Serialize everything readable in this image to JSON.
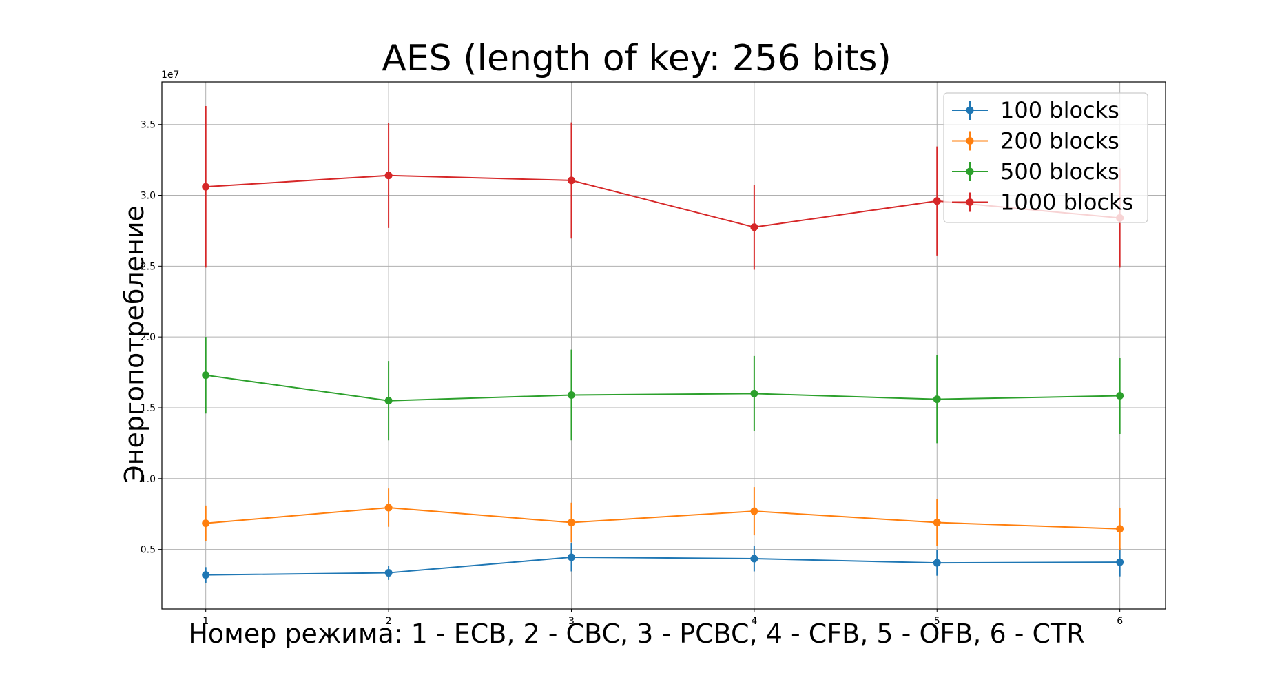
{
  "chart_data": {
    "type": "line",
    "title": "AES (length of key: 256 bits)",
    "xlabel": "Номер режима: 1 - ECB, 2 - CBC, 3 - PCBC, 4 - CFB, 5 - OFB, 6 - CTR",
    "ylabel": "Энергопотребление",
    "y_offset_label": "1e7",
    "x": [
      1,
      2,
      3,
      4,
      5,
      6
    ],
    "x_tick_labels": [
      "1",
      "2",
      "3",
      "4",
      "5",
      "6"
    ],
    "y_ticks": [
      0.5,
      1.0,
      1.5,
      2.0,
      2.5,
      3.0,
      3.5
    ],
    "y_tick_labels": [
      "0.5",
      "1.0",
      "1.5",
      "2.0",
      "2.5",
      "3.0",
      "3.5"
    ],
    "xlim": [
      0.76,
      6.25
    ],
    "ylim": [
      0.08,
      3.8
    ],
    "grid": true,
    "legend_position": "top-right",
    "error_bars": true,
    "series": [
      {
        "name": "100 blocks",
        "color": "#1f77b4",
        "values": [
          0.32,
          0.335,
          0.445,
          0.435,
          0.405,
          0.41
        ],
        "errors": [
          0.055,
          0.05,
          0.1,
          0.09,
          0.09,
          0.1
        ]
      },
      {
        "name": "200 blocks",
        "color": "#ff7f0e",
        "values": [
          0.685,
          0.795,
          0.69,
          0.77,
          0.69,
          0.645
        ],
        "errors": [
          0.125,
          0.135,
          0.14,
          0.17,
          0.165,
          0.15
        ]
      },
      {
        "name": "500 blocks",
        "color": "#2ca02c",
        "values": [
          1.73,
          1.55,
          1.59,
          1.6,
          1.56,
          1.585
        ],
        "errors": [
          0.27,
          0.28,
          0.32,
          0.265,
          0.31,
          0.27
        ]
      },
      {
        "name": "1000 blocks",
        "color": "#d62728",
        "values": [
          3.06,
          3.14,
          3.105,
          2.775,
          2.96,
          2.84
        ],
        "errors": [
          0.57,
          0.37,
          0.41,
          0.3,
          0.385,
          0.35
        ]
      }
    ]
  }
}
